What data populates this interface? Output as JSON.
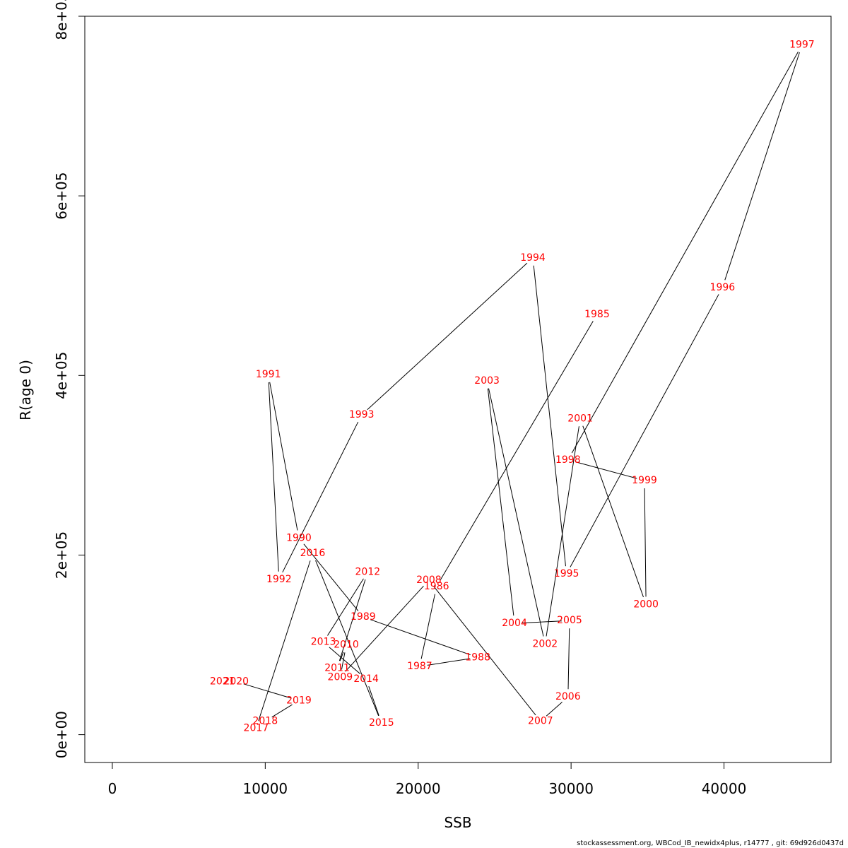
{
  "chart_data": {
    "type": "line",
    "xlabel": "SSB",
    "ylabel": "R(age 0)",
    "xlim": [
      -1800,
      47000
    ],
    "ylim": [
      -31000,
      800000
    ],
    "x_ticks": [
      {
        "value": 0,
        "label": "0"
      },
      {
        "value": 10000,
        "label": "10000"
      },
      {
        "value": 20000,
        "label": "20000"
      },
      {
        "value": 30000,
        "label": "30000"
      },
      {
        "value": 40000,
        "label": "40000"
      }
    ],
    "y_ticks": [
      {
        "value": 0,
        "label": "0e+00"
      },
      {
        "value": 200000,
        "label": "2e+05"
      },
      {
        "value": 400000,
        "label": "4e+05"
      },
      {
        "value": 600000,
        "label": "6e+05"
      },
      {
        "value": 800000,
        "label": "8e+05"
      }
    ],
    "line_color": "#000000",
    "label_color": "#ff0000",
    "points": [
      {
        "year": "1985",
        "ssb": 31700,
        "r": 468000
      },
      {
        "year": "1986",
        "ssb": 21200,
        "r": 165000
      },
      {
        "year": "1987",
        "ssb": 20100,
        "r": 76000
      },
      {
        "year": "1988",
        "ssb": 23900,
        "r": 86000
      },
      {
        "year": "1989",
        "ssb": 16400,
        "r": 131000
      },
      {
        "year": "1990",
        "ssb": 12200,
        "r": 219000
      },
      {
        "year": "1991",
        "ssb": 10200,
        "r": 401000
      },
      {
        "year": "1992",
        "ssb": 10900,
        "r": 173000
      },
      {
        "year": "1993",
        "ssb": 16300,
        "r": 356000
      },
      {
        "year": "1994",
        "ssb": 27500,
        "r": 531000
      },
      {
        "year": "1995",
        "ssb": 29700,
        "r": 179000
      },
      {
        "year": "1996",
        "ssb": 39900,
        "r": 498000
      },
      {
        "year": "1997",
        "ssb": 45100,
        "r": 768000
      },
      {
        "year": "1998",
        "ssb": 29800,
        "r": 306000
      },
      {
        "year": "1999",
        "ssb": 34800,
        "r": 283000
      },
      {
        "year": "2000",
        "ssb": 34900,
        "r": 145000
      },
      {
        "year": "2001",
        "ssb": 30600,
        "r": 352000
      },
      {
        "year": "2002",
        "ssb": 28300,
        "r": 101000
      },
      {
        "year": "2003",
        "ssb": 24500,
        "r": 394000
      },
      {
        "year": "2004",
        "ssb": 26300,
        "r": 124000
      },
      {
        "year": "2005",
        "ssb": 29900,
        "r": 127000
      },
      {
        "year": "2006",
        "ssb": 29800,
        "r": 42000
      },
      {
        "year": "2007",
        "ssb": 28000,
        "r": 15000
      },
      {
        "year": "2008",
        "ssb": 20700,
        "r": 172000
      },
      {
        "year": "2009",
        "ssb": 14900,
        "r": 64000
      },
      {
        "year": "2010",
        "ssb": 15300,
        "r": 100000
      },
      {
        "year": "2011",
        "ssb": 14700,
        "r": 74000
      },
      {
        "year": "2012",
        "ssb": 16700,
        "r": 181000
      },
      {
        "year": "2013",
        "ssb": 13800,
        "r": 103000
      },
      {
        "year": "2014",
        "ssb": 16600,
        "r": 62000
      },
      {
        "year": "2015",
        "ssb": 17600,
        "r": 13000
      },
      {
        "year": "2016",
        "ssb": 13100,
        "r": 202000
      },
      {
        "year": "2017",
        "ssb": 9400,
        "r": 7000
      },
      {
        "year": "2018",
        "ssb": 10000,
        "r": 15000
      },
      {
        "year": "2019",
        "ssb": 12200,
        "r": 38000
      },
      {
        "year": "2020",
        "ssb": 8100,
        "r": 59000
      },
      {
        "year": "2021",
        "ssb": 7200,
        "r": 59000
      }
    ]
  },
  "footer": {
    "text": "stockassessment.org, WBCod_IB_newidx4plus, r14777 , git: 69d926d0437d"
  }
}
